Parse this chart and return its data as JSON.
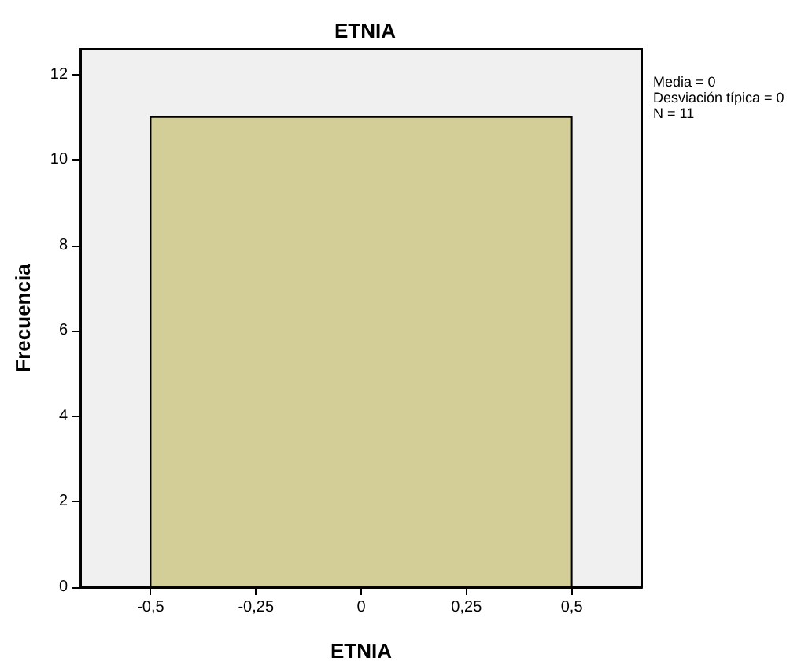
{
  "chart_data": {
    "type": "histogram",
    "title": "ETNIA",
    "xlabel": "ETNIA",
    "ylabel": "Frecuencia",
    "bins": [
      -0.5,
      0.5
    ],
    "values": [
      11
    ],
    "color": "#d3ce97",
    "xlim": [
      -0.667,
      0.667
    ],
    "xticks": [
      {
        "value": -0.5,
        "label": "-0,5"
      },
      {
        "value": -0.25,
        "label": "-0,25"
      },
      0,
      {
        "value": 0.25,
        "label": "0,25"
      },
      {
        "value": 0.5,
        "label": "0,5"
      }
    ],
    "ylim": [
      0,
      12.6
    ],
    "yticks": [
      0,
      2,
      4,
      6,
      8,
      10,
      12
    ],
    "grid": false,
    "annotations": [
      "Media = 0",
      "Desviación típica = 0",
      "N = 11"
    ]
  }
}
